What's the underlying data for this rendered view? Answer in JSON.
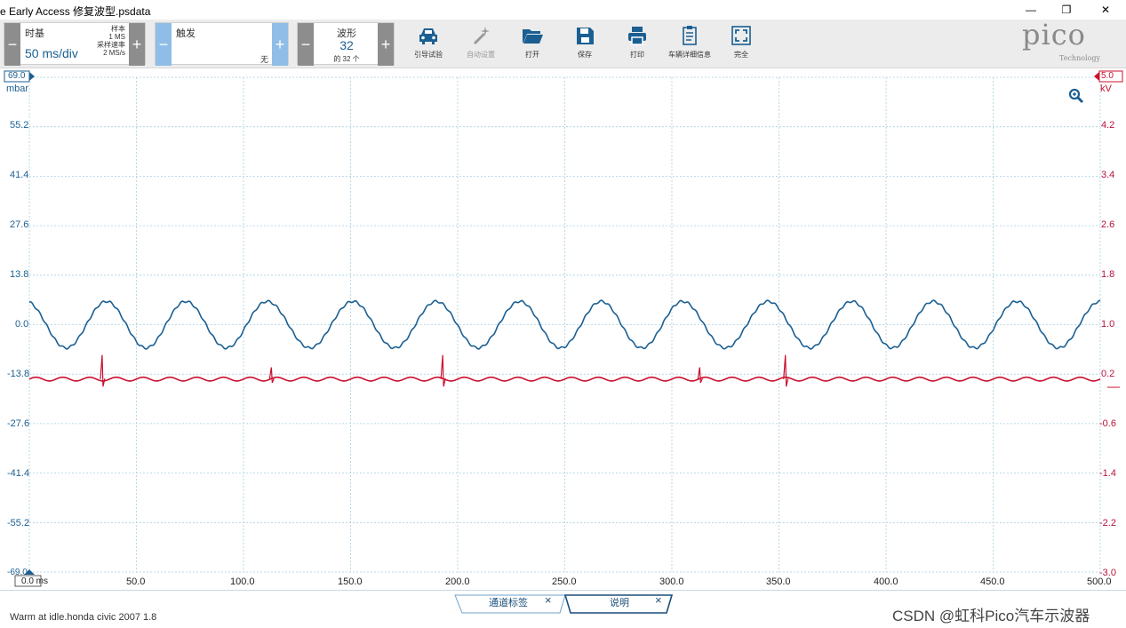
{
  "window": {
    "title": "e Early Access 修复波型.psdata",
    "min_glyph": "—",
    "max_glyph": "❐",
    "close_glyph": "✕"
  },
  "toolbar": {
    "timebase": {
      "label": "时基",
      "value": "50 ms/div",
      "samples_label": "样本",
      "samples_value": "1 MS",
      "rate_label": "采样速率",
      "rate_value": "2 MS/s",
      "minus": "−",
      "plus": "+"
    },
    "trigger": {
      "label": "触发",
      "value": "无",
      "minus": "−",
      "plus": "+"
    },
    "waveform": {
      "label": "波形",
      "value": "32",
      "of": "的 32 个",
      "minus": "−",
      "plus": "+"
    },
    "buttons": [
      {
        "label": "引导试验",
        "icon": "car-icon"
      },
      {
        "label": "自动设置",
        "icon": "magic-wand-icon"
      },
      {
        "label": "打开",
        "icon": "folder-open-icon"
      },
      {
        "label": "保存",
        "icon": "floppy-disk-icon"
      },
      {
        "label": "打印",
        "icon": "printer-icon"
      },
      {
        "label": "车辆详细信息",
        "icon": "clipboard-icon"
      },
      {
        "label": "完全",
        "icon": "fullscreen-icon"
      }
    ]
  },
  "logo": {
    "text": "pico",
    "sub": "Technology"
  },
  "colors": {
    "channel_a": "#1b5f92",
    "channel_b": "#c8102e",
    "grid": "#a9cfe0"
  },
  "axis": {
    "left_unit": "mbar",
    "left_top_marker": "69.0",
    "left_bottom_marker": "-69.0",
    "left_ticks": [
      "55.2",
      "41.4",
      "27.6",
      "13.8",
      "0.0",
      "-13.8",
      "-27.6",
      "-41.4",
      "-55.2"
    ],
    "right_unit": "kV",
    "right_top_marker": "5.0",
    "right_ticks": [
      "4.2",
      "3.4",
      "2.6",
      "1.8",
      "1.0",
      "0.2",
      "-0.6",
      "-1.4",
      "-2.2",
      "-3.0"
    ],
    "x_origin_label": "0.0 ms",
    "x_ticks": [
      "50.0",
      "100.0",
      "150.0",
      "200.0",
      "250.0",
      "300.0",
      "350.0",
      "400.0",
      "450.0",
      "500.0"
    ]
  },
  "chart_data": {
    "type": "line",
    "x_range_ms": [
      0,
      500
    ],
    "series": [
      {
        "axis": "left",
        "unit": "mbar",
        "period_ms": 37.5,
        "peak_times_ms": [
          36,
          73,
          111,
          151,
          190,
          229,
          267,
          305,
          345,
          384,
          422,
          461,
          500
        ],
        "amplitude": 6.5,
        "offset": 0.5
      },
      {
        "axis": "right",
        "unit": "kV",
        "baseline": 0.2,
        "ripple_period_ms": 12.5,
        "ripple_amplitude": 0.03,
        "spike_times_ms": [
          34,
          113,
          193,
          313,
          353
        ]
      }
    ]
  },
  "tabs": [
    {
      "label": "通道标签",
      "close": "×"
    },
    {
      "label": "说明",
      "close": "×"
    }
  ],
  "status": {
    "text": "Warm at idle.honda civic 2007 1.8"
  },
  "watermark": "CSDN @虹科Pico汽车示波器"
}
